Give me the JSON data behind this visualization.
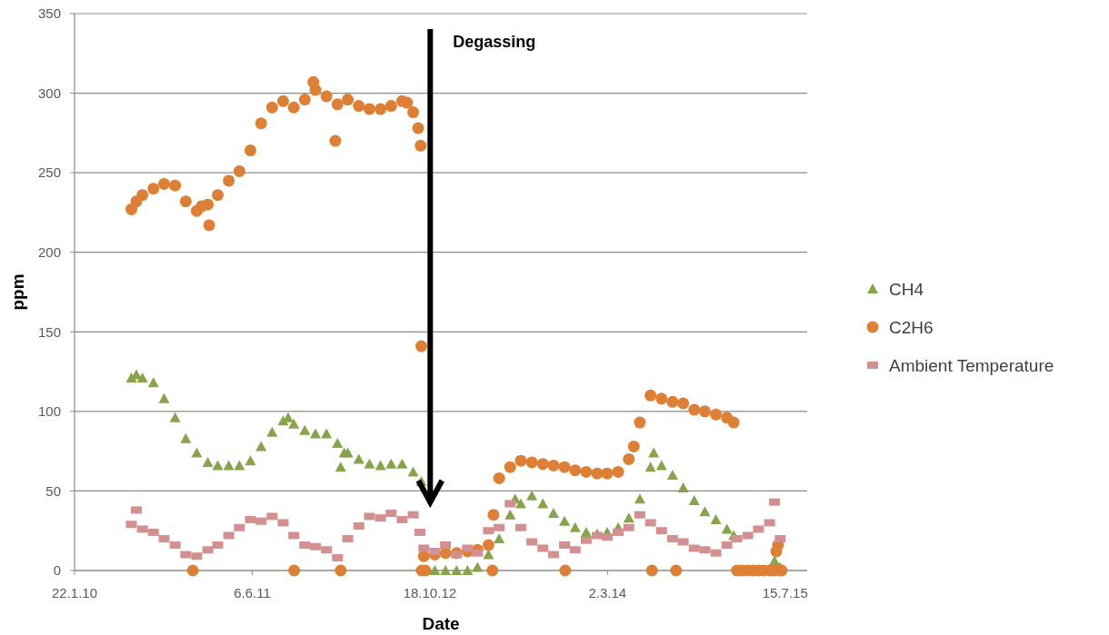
{
  "chart_data": {
    "type": "scatter",
    "xlabel": "Date",
    "ylabel": "ppm",
    "xlim": [
      "2010-01-22",
      "2015-09-15"
    ],
    "xticks": [
      {
        "value": "2010-01-22",
        "label": "22.1.10"
      },
      {
        "value": "2011-06-06",
        "label": "6.6.11"
      },
      {
        "value": "2012-10-18",
        "label": "18.10.12"
      },
      {
        "value": "2014-03-02",
        "label": "2.3.14"
      },
      {
        "value": "2015-07-15",
        "label": "15.7.15"
      }
    ],
    "ylim": [
      0,
      350
    ],
    "yticks": [
      0,
      50,
      100,
      150,
      200,
      250,
      300,
      350
    ],
    "grid": "y",
    "legend": "right",
    "ref_lines": [
      {
        "axis": "x",
        "value": "2012-10-19",
        "label": "Degassing",
        "color": "#000000"
      }
    ],
    "series": [
      {
        "name": "CH4",
        "color": "#86a44a",
        "marker": "triangle",
        "x": [
          "2010-07-01",
          "2010-07-15",
          "2010-08-01",
          "2010-09-01",
          "2010-10-01",
          "2010-11-01",
          "2010-12-01",
          "2011-01-01",
          "2011-02-01",
          "2011-03-01",
          "2011-04-01",
          "2011-05-01",
          "2011-06-01",
          "2011-07-01",
          "2011-08-01",
          "2011-09-01",
          "2011-09-15",
          "2011-10-01",
          "2011-11-01",
          "2011-12-01",
          "2012-01-01",
          "2012-02-01",
          "2012-02-10",
          "2012-02-20",
          "2012-03-01",
          "2012-04-01",
          "2012-05-01",
          "2012-06-01",
          "2012-07-01",
          "2012-08-01",
          "2012-09-01",
          "2012-09-24",
          "2012-10-12",
          "2012-11-01",
          "2012-12-01",
          "2013-01-01",
          "2013-02-01",
          "2013-03-01",
          "2013-04-01",
          "2013-05-01",
          "2013-06-01",
          "2013-06-15",
          "2013-07-01",
          "2013-08-01",
          "2013-09-01",
          "2013-10-01",
          "2013-11-01",
          "2013-12-01",
          "2014-01-01",
          "2014-02-01",
          "2014-03-01",
          "2014-04-01",
          "2014-05-01",
          "2014-06-01",
          "2014-07-01",
          "2014-07-10",
          "2014-08-01",
          "2014-09-01",
          "2014-10-01",
          "2014-11-01",
          "2014-12-01",
          "2015-01-01",
          "2015-02-01",
          "2015-02-20",
          "2015-06-15",
          "2015-07-01"
        ],
        "values": [
          121,
          123,
          121,
          118,
          108,
          96,
          83,
          74,
          68,
          66,
          66,
          66,
          69,
          78,
          87,
          94,
          96,
          92,
          88,
          86,
          86,
          80,
          65,
          74,
          74,
          70,
          67,
          66,
          67,
          67,
          62,
          56,
          0,
          0,
          0,
          0,
          0,
          2,
          10,
          20,
          35,
          45,
          42,
          47,
          42,
          36,
          31,
          27,
          24,
          23,
          24,
          27,
          33,
          45,
          65,
          74,
          66,
          60,
          52,
          44,
          37,
          32,
          26,
          22,
          6,
          2
        ]
      },
      {
        "name": "C2H6",
        "color": "#dd8036",
        "marker": "circle",
        "x": [
          "2010-07-01",
          "2010-07-15",
          "2010-08-01",
          "2010-09-01",
          "2010-10-01",
          "2010-11-01",
          "2010-12-01",
          "2010-12-21",
          "2011-01-01",
          "2011-01-15",
          "2011-02-01",
          "2011-02-05",
          "2011-03-01",
          "2011-04-01",
          "2011-05-01",
          "2011-06-01",
          "2011-07-01",
          "2011-08-01",
          "2011-09-01",
          "2011-10-01",
          "2011-10-02",
          "2011-11-01",
          "2011-11-25",
          "2011-12-01",
          "2012-01-01",
          "2012-01-26",
          "2012-02-01",
          "2012-02-10",
          "2012-03-01",
          "2012-04-01",
          "2012-05-01",
          "2012-06-01",
          "2012-07-01",
          "2012-08-01",
          "2012-08-15",
          "2012-09-01",
          "2012-09-15",
          "2012-09-22",
          "2012-09-24",
          "2012-09-25",
          "2012-10-01",
          "2012-10-05",
          "2012-11-01",
          "2012-12-01",
          "2013-01-01",
          "2013-02-01",
          "2013-03-01",
          "2013-04-01",
          "2013-04-12",
          "2013-04-15",
          "2013-05-01",
          "2013-06-01",
          "2013-07-01",
          "2013-08-01",
          "2013-09-01",
          "2013-10-01",
          "2013-11-01",
          "2013-11-03",
          "2013-12-01",
          "2014-01-01",
          "2014-02-01",
          "2014-03-01",
          "2014-04-01",
          "2014-05-01",
          "2014-05-15",
          "2014-06-01",
          "2014-07-01",
          "2014-07-05",
          "2014-08-01",
          "2014-09-01",
          "2014-09-11",
          "2014-10-01",
          "2014-11-01",
          "2014-12-01",
          "2015-01-01",
          "2015-02-01",
          "2015-02-20",
          "2015-03-01",
          "2015-03-15",
          "2015-04-01",
          "2015-04-15",
          "2015-05-01",
          "2015-05-15",
          "2015-06-01",
          "2015-06-15",
          "2015-06-20",
          "2015-06-25",
          "2015-07-01",
          "2015-07-05"
        ],
        "values": [
          227,
          232,
          236,
          240,
          243,
          242,
          232,
          0,
          226,
          229,
          230,
          217,
          236,
          245,
          251,
          264,
          281,
          291,
          295,
          291,
          0,
          296,
          307,
          302,
          298,
          270,
          293,
          0,
          296,
          292,
          290,
          290,
          292,
          295,
          294,
          288,
          278,
          267,
          141,
          0,
          9,
          0,
          10,
          11,
          11,
          12,
          13,
          16,
          0,
          35,
          58,
          65,
          69,
          68,
          67,
          66,
          65,
          0,
          63,
          62,
          61,
          61,
          62,
          70,
          78,
          93,
          110,
          0,
          108,
          106,
          0,
          105,
          101,
          100,
          98,
          96,
          93,
          0,
          0,
          0,
          0,
          0,
          0,
          0,
          0,
          12,
          16,
          0,
          0
        ]
      },
      {
        "name": "Ambient Temperature",
        "color": "#d49090",
        "marker": "square",
        "x": [
          "2010-07-01",
          "2010-07-15",
          "2010-08-01",
          "2010-09-01",
          "2010-10-01",
          "2010-11-01",
          "2010-12-01",
          "2011-01-01",
          "2011-02-01",
          "2011-03-01",
          "2011-04-01",
          "2011-05-01",
          "2011-06-01",
          "2011-07-01",
          "2011-08-01",
          "2011-09-01",
          "2011-10-01",
          "2011-11-01",
          "2011-12-01",
          "2012-01-01",
          "2012-02-01",
          "2012-03-01",
          "2012-04-01",
          "2012-05-01",
          "2012-06-01",
          "2012-07-01",
          "2012-08-01",
          "2012-09-01",
          "2012-09-20",
          "2012-10-01",
          "2012-11-01",
          "2012-12-01",
          "2013-01-01",
          "2013-02-01",
          "2013-03-01",
          "2013-04-01",
          "2013-05-01",
          "2013-06-01",
          "2013-07-01",
          "2013-08-01",
          "2013-09-01",
          "2013-10-01",
          "2013-11-01",
          "2013-12-01",
          "2014-01-01",
          "2014-02-01",
          "2014-03-01",
          "2014-04-01",
          "2014-05-01",
          "2014-06-01",
          "2014-07-01",
          "2014-08-01",
          "2014-09-01",
          "2014-10-01",
          "2014-11-01",
          "2014-12-01",
          "2015-01-01",
          "2015-02-01",
          "2015-03-01",
          "2015-04-01",
          "2015-05-01",
          "2015-06-01",
          "2015-06-15",
          "2015-07-01"
        ],
        "values": [
          29,
          38,
          26,
          24,
          20,
          16,
          10,
          9,
          13,
          16,
          22,
          27,
          32,
          31,
          34,
          30,
          22,
          16,
          15,
          13,
          8,
          20,
          28,
          34,
          33,
          36,
          32,
          35,
          24,
          14,
          12,
          16,
          10,
          14,
          11,
          25,
          27,
          42,
          27,
          18,
          14,
          10,
          16,
          13,
          19,
          22,
          21,
          24,
          27,
          35,
          30,
          25,
          20,
          18,
          14,
          13,
          11,
          16,
          20,
          22,
          26,
          30,
          43,
          20
        ]
      }
    ]
  }
}
